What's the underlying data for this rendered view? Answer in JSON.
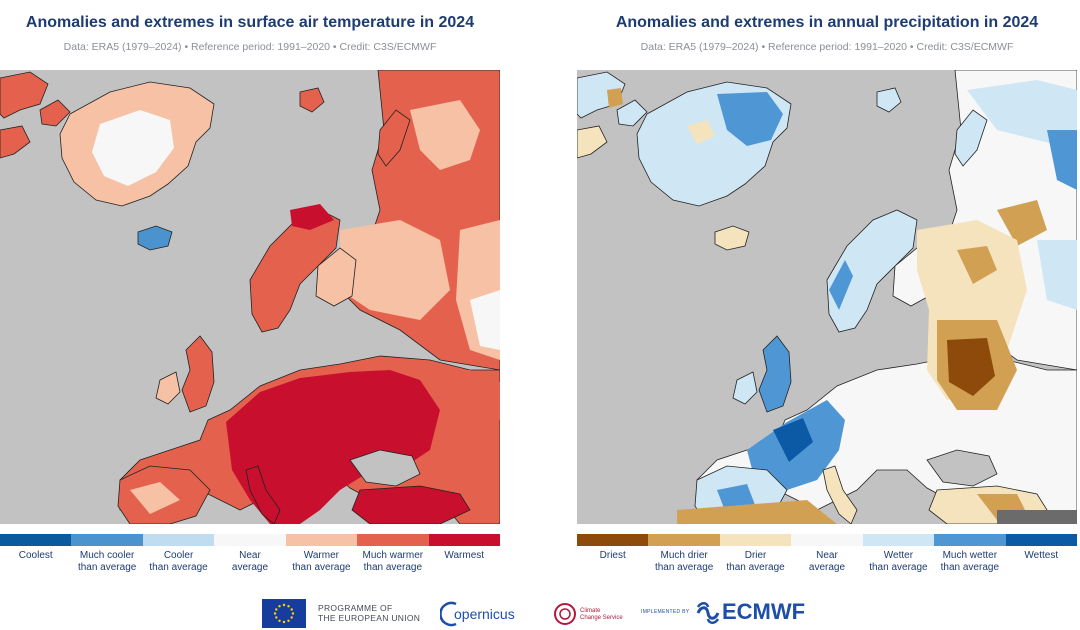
{
  "temperature_panel": {
    "title": "Anomalies and extremes in surface air temperature in 2024",
    "subtitle": "Data: ERA5 (1979–2024) • Reference period: 1991–2020 • Credit: C3S/ECMWF",
    "legend": [
      {
        "label": "Coolest",
        "color": "#0a5a9e"
      },
      {
        "label": "Much cooler\nthan average",
        "color": "#4a93cf"
      },
      {
        "label": "Cooler\nthan average",
        "color": "#bfdcf1"
      },
      {
        "label": "Near\naverage",
        "color": "#f7f7f7"
      },
      {
        "label": "Warmer\nthan average",
        "color": "#f6c1a4"
      },
      {
        "label": "Much warmer\nthan average",
        "color": "#e4624d"
      },
      {
        "label": "Warmest",
        "color": "#c8102e"
      }
    ]
  },
  "precipitation_panel": {
    "title": "Anomalies and extremes in annual precipitation in 2024",
    "subtitle": "Data: ERA5 (1979–2024) • Reference period: 1991–2020 • Credit: C3S/ECMWF",
    "legend": [
      {
        "label": "Driest",
        "color": "#8e4a0a"
      },
      {
        "label": "Much drier\nthan average",
        "color": "#d1a052"
      },
      {
        "label": "Drier\nthan average",
        "color": "#f4e3bd"
      },
      {
        "label": "Near\naverage",
        "color": "#f7f7f7"
      },
      {
        "label": "Wetter\nthan average",
        "color": "#cfe6f4"
      },
      {
        "label": "Much wetter\nthan average",
        "color": "#4f97d4"
      },
      {
        "label": "Wettest",
        "color": "#0c5aa6"
      }
    ]
  },
  "map_colors": {
    "ocean": "#c2c2c2",
    "coast": "#222222"
  },
  "footer": {
    "eu_text": "PROGRAMME OF\nTHE EUROPEAN UNION",
    "copernicus": "opernicus",
    "c3s": "Climate\nChange Service",
    "implemented_by": "IMPLEMENTED BY",
    "ecmwf": "ECMWF"
  }
}
